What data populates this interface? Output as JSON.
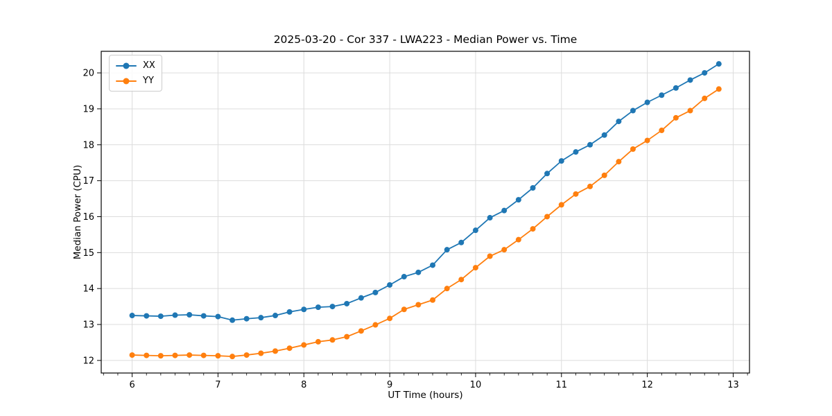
{
  "figure": {
    "background": "#ffffff",
    "axis_color": "#000000",
    "grid_color": "#dcdcdc",
    "tick_label_color": "#000000"
  },
  "chart_data": {
    "type": "line",
    "title": "2025-03-20 - Cor 337 - LWA223 - Median Power vs. Time",
    "xlabel": "UT Time (hours)",
    "ylabel": "Median Power (CPU)",
    "xlim": [
      5.64,
      13.19
    ],
    "ylim": [
      11.65,
      20.6
    ],
    "xticks": [
      6,
      7,
      8,
      9,
      10,
      11,
      12,
      13
    ],
    "yticks": [
      12,
      13,
      14,
      15,
      16,
      17,
      18,
      19,
      20
    ],
    "x_minor_step": 0.1666667,
    "grid": true,
    "legend_position": "upper-left",
    "x": [
      6.0,
      6.167,
      6.333,
      6.5,
      6.667,
      6.833,
      7.0,
      7.167,
      7.333,
      7.5,
      7.667,
      7.833,
      8.0,
      8.167,
      8.333,
      8.5,
      8.667,
      8.833,
      9.0,
      9.167,
      9.333,
      9.5,
      9.667,
      9.833,
      10.0,
      10.167,
      10.333,
      10.5,
      10.667,
      10.833,
      11.0,
      11.167,
      11.333,
      11.5,
      11.667,
      11.833,
      12.0,
      12.167,
      12.333,
      12.5,
      12.667,
      12.833
    ],
    "series": [
      {
        "name": "XX",
        "color": "#1f77b4",
        "values": [
          13.25,
          13.24,
          13.23,
          13.26,
          13.27,
          13.24,
          13.22,
          13.12,
          13.16,
          13.19,
          13.25,
          13.35,
          13.42,
          13.48,
          13.5,
          13.58,
          13.74,
          13.89,
          14.1,
          14.33,
          14.45,
          14.65,
          15.08,
          15.28,
          15.62,
          15.97,
          16.17,
          16.47,
          16.8,
          17.2,
          17.55,
          17.8,
          18.0,
          18.27,
          18.65,
          18.95,
          19.18,
          19.38,
          19.58,
          19.8,
          20.0,
          20.25
        ]
      },
      {
        "name": "YY",
        "color": "#ff7f0e",
        "values": [
          12.15,
          12.14,
          12.13,
          12.14,
          12.15,
          12.14,
          12.13,
          12.11,
          12.15,
          12.2,
          12.26,
          12.34,
          12.43,
          12.52,
          12.57,
          12.66,
          12.82,
          12.99,
          13.17,
          13.42,
          13.55,
          13.68,
          14.0,
          14.25,
          14.58,
          14.9,
          15.08,
          15.36,
          15.66,
          16.0,
          16.33,
          16.63,
          16.84,
          17.15,
          17.53,
          17.88,
          18.12,
          18.4,
          18.75,
          18.95,
          19.29,
          19.55
        ]
      }
    ]
  }
}
